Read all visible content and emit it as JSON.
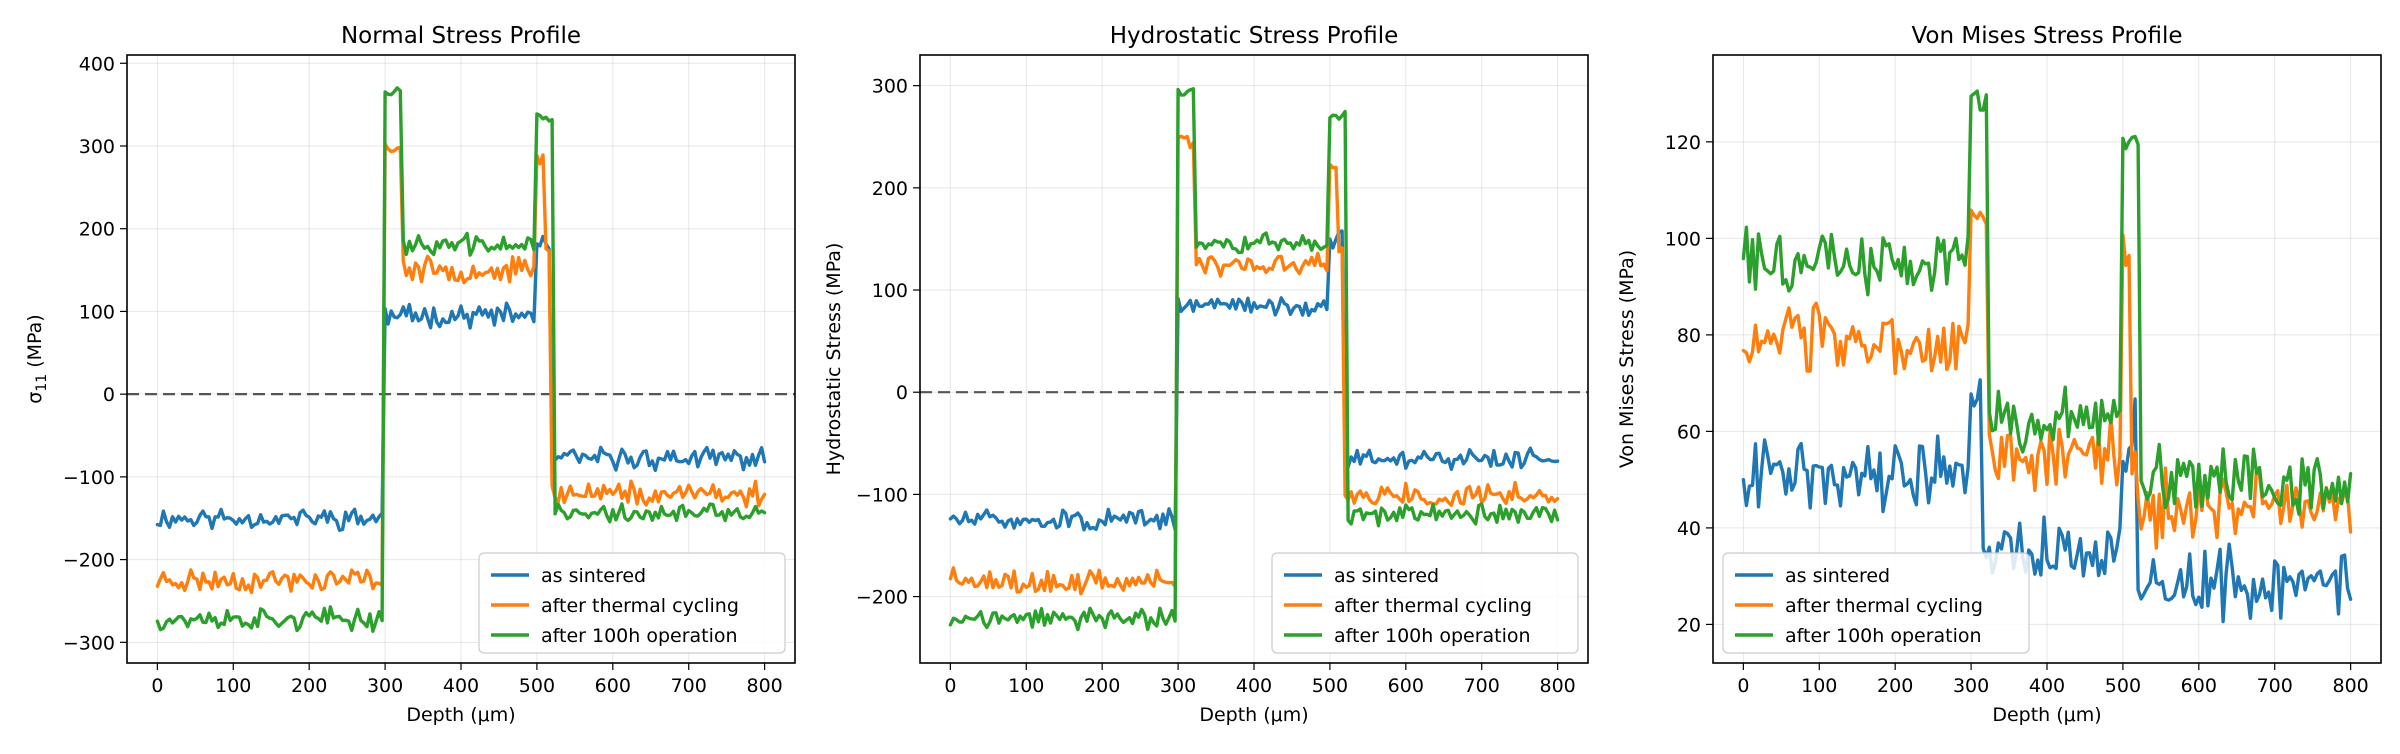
{
  "colors": {
    "as_sintered": "#1f77b4",
    "after_thermal_cycling": "#ff7f0e",
    "after_100h_operation": "#2ca02c"
  },
  "chart_data": [
    {
      "type": "line",
      "title": "Normal Stress Profile",
      "xlabel": "Depth (μm)",
      "ylabel_main": "σ",
      "ylabel_sub": "11",
      "ylabel_rest": " (MPa)",
      "xlim": [
        -40,
        840
      ],
      "ylim": [
        -325,
        410
      ],
      "xticks": [
        0,
        100,
        200,
        300,
        400,
        500,
        600,
        700,
        800
      ],
      "yticks": [
        -300,
        -200,
        -100,
        0,
        100,
        200,
        300,
        400
      ],
      "zero_line": true,
      "legend_position": "lower-right",
      "series": [
        {
          "name": "as sintered",
          "levels": [
            -150,
            95,
            180,
            -78
          ],
          "noise": 8,
          "spikes": [],
          "seed": 11
        },
        {
          "name": "after thermal cycling",
          "levels": [
            -225,
            150,
            175,
            -120
          ],
          "noise": 9,
          "spikes": [
            [
              300,
              320,
              300
            ],
            [
              500,
              510,
              285
            ]
          ],
          "seed": 23
        },
        {
          "name": "after 100h operation",
          "levels": [
            -272,
            180,
            180,
            -145
          ],
          "noise": 8,
          "spikes": [
            [
              300,
              320,
              365
            ],
            [
              500,
              520,
              335
            ]
          ],
          "seed": 37
        }
      ]
    },
    {
      "type": "line",
      "title": "Hydrostatic Stress Profile",
      "xlabel": "Depth (μm)",
      "ylabel_main": "Hydrostatic Stress (MPa)",
      "ylabel_sub": "",
      "ylabel_rest": "",
      "xlim": [
        -40,
        840
      ],
      "ylim": [
        -265,
        330
      ],
      "xticks": [
        0,
        100,
        200,
        300,
        400,
        500,
        600,
        700,
        800
      ],
      "yticks": [
        -200,
        -100,
        0,
        100,
        200,
        300
      ],
      "zero_line": true,
      "legend_position": "lower-right",
      "series": [
        {
          "name": "as sintered",
          "levels": [
            -125,
            85,
            150,
            -65
          ],
          "noise": 6,
          "spikes": [],
          "seed": 51
        },
        {
          "name": "after thermal cycling",
          "levels": [
            -185,
            125,
            140,
            -100
          ],
          "noise": 7,
          "spikes": [
            [
              300,
              320,
              245
            ],
            [
              500,
              510,
              225
            ]
          ],
          "seed": 63
        },
        {
          "name": "after 100h operation",
          "levels": [
            -222,
            145,
            148,
            -120
          ],
          "noise": 6,
          "spikes": [
            [
              300,
              320,
              295
            ],
            [
              500,
              520,
              270
            ]
          ],
          "seed": 77
        }
      ]
    },
    {
      "type": "line",
      "title": "Von Mises Stress Profile",
      "xlabel": "Depth (μm)",
      "ylabel_main": "Von Mises Stress (MPa)",
      "ylabel_sub": "",
      "ylabel_rest": "",
      "xlim": [
        -40,
        840
      ],
      "ylim": [
        12,
        138
      ],
      "xticks": [
        0,
        100,
        200,
        300,
        400,
        500,
        600,
        700,
        800
      ],
      "yticks": [
        20,
        40,
        60,
        80,
        100,
        120
      ],
      "zero_line": false,
      "legend_position": "lower-left",
      "series": [
        {
          "name": "as sintered",
          "levels": [
            52,
            35,
            60,
            28
          ],
          "noise": 4.5,
          "spikes": [
            [
              300,
              315,
              68
            ]
          ],
          "seed": 91
        },
        {
          "name": "after thermal cycling",
          "levels": [
            78,
            55,
            55,
            44
          ],
          "noise": 4.5,
          "spikes": [
            [
              300,
              320,
              103
            ],
            [
              500,
              510,
              98
            ]
          ],
          "seed": 103
        },
        {
          "name": "after 100h operation",
          "levels": [
            95,
            62,
            62,
            50
          ],
          "noise": 4,
          "spikes": [
            [
              300,
              320,
              128
            ],
            [
              500,
              520,
              118
            ]
          ],
          "seed": 117
        }
      ]
    }
  ]
}
